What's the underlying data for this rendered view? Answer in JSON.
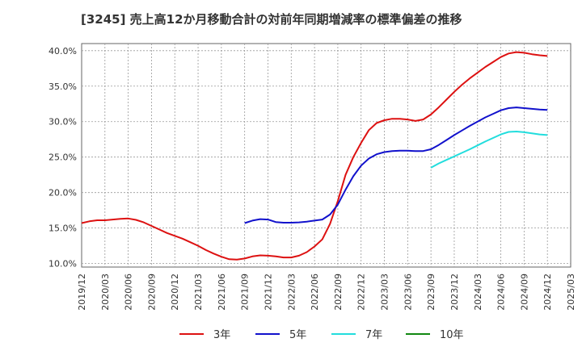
{
  "chart_data": {
    "type": "line",
    "title": "[3245]  売上高12か月移動合計の対前年同期増減率の標準偏差の推移",
    "xlabel": "",
    "ylabel": "",
    "x_ticks": [
      "2019/12",
      "2020/03",
      "2020/06",
      "2020/09",
      "2020/12",
      "2021/03",
      "2021/06",
      "2021/09",
      "2021/12",
      "2022/03",
      "2022/06",
      "2022/09",
      "2022/12",
      "2023/03",
      "2023/06",
      "2023/09",
      "2023/12",
      "2024/03",
      "2024/06",
      "2024/09",
      "2024/12",
      "2025/03"
    ],
    "y_ticks": [
      "10.0%",
      "15.0%",
      "20.0%",
      "25.0%",
      "30.0%",
      "35.0%",
      "40.0%"
    ],
    "ylim": [
      9.5,
      41
    ],
    "grid": true,
    "legend_position": "bottom",
    "series": [
      {
        "name": "3年",
        "color": "#dd1111",
        "values": [
          [
            "2019/12",
            15.7
          ],
          [
            "2020/01",
            15.95
          ],
          [
            "2020/02",
            16.1
          ],
          [
            "2020/03",
            16.1
          ],
          [
            "2020/04",
            16.2
          ],
          [
            "2020/05",
            16.3
          ],
          [
            "2020/06",
            16.35
          ],
          [
            "2020/07",
            16.15
          ],
          [
            "2020/08",
            15.8
          ],
          [
            "2020/09",
            15.3
          ],
          [
            "2020/10",
            14.8
          ],
          [
            "2020/11",
            14.3
          ],
          [
            "2020/12",
            13.9
          ],
          [
            "2021/01",
            13.5
          ],
          [
            "2021/02",
            13.0
          ],
          [
            "2021/03",
            12.5
          ],
          [
            "2021/04",
            11.9
          ],
          [
            "2021/05",
            11.4
          ],
          [
            "2021/06",
            10.95
          ],
          [
            "2021/07",
            10.6
          ],
          [
            "2021/08",
            10.55
          ],
          [
            "2021/09",
            10.7
          ],
          [
            "2021/10",
            11.0
          ],
          [
            "2021/11",
            11.15
          ],
          [
            "2021/12",
            11.1
          ],
          [
            "2021/12b",
            11.0
          ],
          [
            "2022/02",
            10.85
          ],
          [
            "2022/03",
            10.85
          ],
          [
            "2022/04",
            11.1
          ],
          [
            "2022/05",
            11.6
          ],
          [
            "2022/06",
            12.4
          ],
          [
            "2022/07",
            13.4
          ],
          [
            "2022/08",
            15.6
          ],
          [
            "2022/09",
            18.8
          ],
          [
            "2022/10",
            22.5
          ],
          [
            "2022/11",
            25.0
          ],
          [
            "2022/12",
            27.0
          ],
          [
            "2023/01",
            28.8
          ],
          [
            "2023/02",
            29.8
          ],
          [
            "2023/03",
            30.2
          ],
          [
            "2023/04",
            30.4
          ],
          [
            "2023/05",
            30.4
          ],
          [
            "2023/06",
            30.3
          ],
          [
            "2023/07",
            30.1
          ],
          [
            "2023/08",
            30.3
          ],
          [
            "2023/09",
            31.0
          ],
          [
            "2023/10",
            32.0
          ],
          [
            "2023/11",
            33.1
          ],
          [
            "2023/12",
            34.2
          ],
          [
            "2024/01",
            35.2
          ],
          [
            "2024/02",
            36.1
          ],
          [
            "2024/03",
            36.9
          ],
          [
            "2024/04",
            37.7
          ],
          [
            "2024/05",
            38.4
          ],
          [
            "2024/06",
            39.1
          ],
          [
            "2024/07",
            39.6
          ],
          [
            "2024/08",
            39.8
          ],
          [
            "2024/09",
            39.7
          ],
          [
            "2024/10",
            39.5
          ],
          [
            "2024/11",
            39.35
          ],
          [
            "2024/12",
            39.25
          ]
        ]
      },
      {
        "name": "5年",
        "color": "#1111cc",
        "values": [
          [
            "2021/09",
            15.7
          ],
          [
            "2021/10",
            16.05
          ],
          [
            "2021/11",
            16.25
          ],
          [
            "2021/12",
            16.2
          ],
          [
            "2022/01",
            15.85
          ],
          [
            "2022/02",
            15.75
          ],
          [
            "2022/03",
            15.75
          ],
          [
            "2022/04",
            15.8
          ],
          [
            "2022/05",
            15.9
          ],
          [
            "2022/06",
            16.05
          ],
          [
            "2022/07",
            16.2
          ],
          [
            "2022/08",
            16.9
          ],
          [
            "2022/09",
            18.3
          ],
          [
            "2022/10",
            20.4
          ],
          [
            "2022/11",
            22.3
          ],
          [
            "2022/12",
            23.8
          ],
          [
            "2023/01",
            24.8
          ],
          [
            "2023/02",
            25.4
          ],
          [
            "2023/03",
            25.7
          ],
          [
            "2023/04",
            25.85
          ],
          [
            "2023/05",
            25.9
          ],
          [
            "2023/06",
            25.9
          ],
          [
            "2023/07",
            25.85
          ],
          [
            "2023/08",
            25.85
          ],
          [
            "2023/09",
            26.1
          ],
          [
            "2023/10",
            26.7
          ],
          [
            "2023/11",
            27.4
          ],
          [
            "2023/12",
            28.1
          ],
          [
            "2024/01",
            28.75
          ],
          [
            "2024/02",
            29.4
          ],
          [
            "2024/03",
            30.0
          ],
          [
            "2024/04",
            30.6
          ],
          [
            "2024/05",
            31.1
          ],
          [
            "2024/06",
            31.6
          ],
          [
            "2024/07",
            31.9
          ],
          [
            "2024/08",
            32.0
          ],
          [
            "2024/09",
            31.9
          ],
          [
            "2024/10",
            31.8
          ],
          [
            "2024/11",
            31.7
          ],
          [
            "2024/12",
            31.65
          ]
        ]
      },
      {
        "name": "7年",
        "color": "#22dddd",
        "values": [
          [
            "2023/09",
            23.5
          ],
          [
            "2023/10",
            24.1
          ],
          [
            "2023/11",
            24.6
          ],
          [
            "2023/12",
            25.1
          ],
          [
            "2024/01",
            25.6
          ],
          [
            "2024/02",
            26.1
          ],
          [
            "2024/03",
            26.65
          ],
          [
            "2024/04",
            27.2
          ],
          [
            "2024/05",
            27.7
          ],
          [
            "2024/06",
            28.2
          ],
          [
            "2024/07",
            28.55
          ],
          [
            "2024/08",
            28.6
          ],
          [
            "2024/09",
            28.5
          ],
          [
            "2024/10",
            28.35
          ],
          [
            "2024/11",
            28.2
          ],
          [
            "2024/12",
            28.1
          ]
        ]
      },
      {
        "name": "10年",
        "color": "#118811",
        "values": []
      }
    ]
  }
}
